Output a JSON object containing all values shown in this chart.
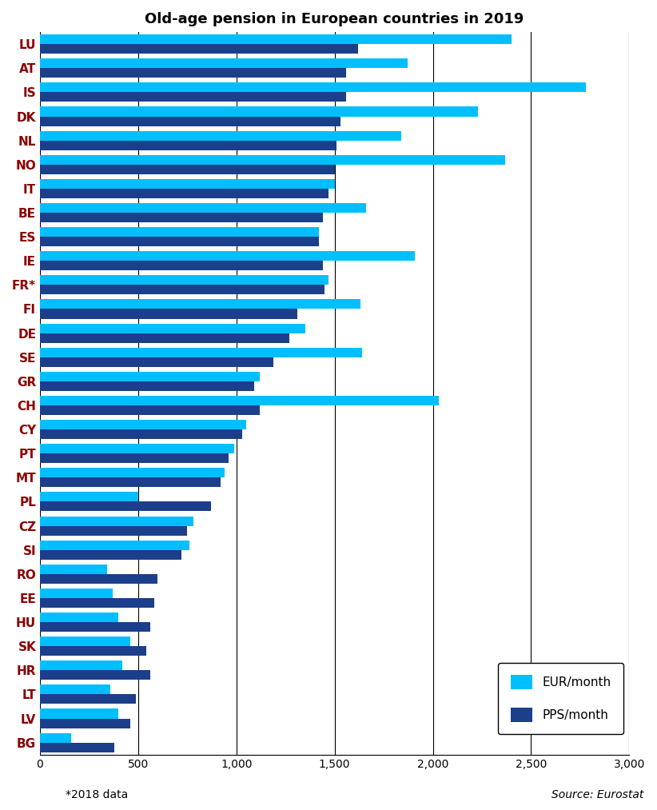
{
  "title": "Old-age pension in European countries in 2019",
  "countries": [
    "LU",
    "AT",
    "IS",
    "DK",
    "NL",
    "NO",
    "IT",
    "BE",
    "ES",
    "IE",
    "FR*",
    "FI",
    "DE",
    "SE",
    "GR",
    "CH",
    "CY",
    "PT",
    "MT",
    "PL",
    "CZ",
    "SI",
    "RO",
    "EE",
    "HU",
    "SK",
    "HR",
    "LT",
    "LV",
    "BG"
  ],
  "eur_month": [
    2400,
    1870,
    2780,
    2230,
    1840,
    2370,
    1500,
    1660,
    1420,
    1910,
    1470,
    1630,
    1350,
    1640,
    1120,
    2030,
    1050,
    990,
    940,
    500,
    780,
    760,
    340,
    370,
    400,
    460,
    420,
    360,
    400,
    160
  ],
  "pps_month": [
    1620,
    1560,
    1560,
    1530,
    1510,
    1500,
    1470,
    1440,
    1420,
    1440,
    1450,
    1310,
    1270,
    1190,
    1090,
    1120,
    1030,
    960,
    920,
    870,
    750,
    720,
    600,
    580,
    560,
    540,
    560,
    490,
    460,
    380
  ],
  "eur_color": "#00BFFF",
  "pps_color": "#1B3F8B",
  "xlim": [
    0,
    3000
  ],
  "xticks": [
    0,
    500,
    1000,
    1500,
    2000,
    2500,
    3000
  ],
  "xtick_labels": [
    "0",
    "500",
    "1,000",
    "1,500",
    "2,000",
    "2,500",
    "3,000"
  ],
  "footnote": "*2018 data",
  "source": "Source: Eurostat",
  "legend_eur": "EUR/month",
  "legend_pps": "PPS/month",
  "bar_height": 0.4,
  "figsize": [
    8.22,
    10.13
  ],
  "dpi": 100
}
